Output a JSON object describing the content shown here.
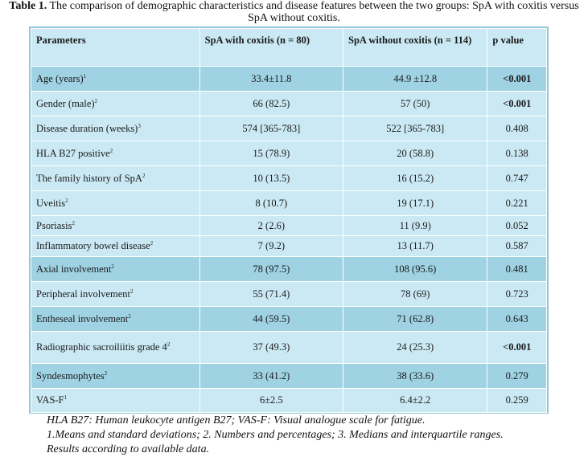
{
  "caption": {
    "label": "Table 1.",
    "text": "The comparison of demographic characteristics and disease features between the two groups: SpA with coxitis versus SpA without coxitis."
  },
  "headers": {
    "parameters": "Parameters",
    "with_coxitis": "SpA with coxitis (n = 80)",
    "without_coxitis": "SpA  without  coxitis  (n  =  114)",
    "p_value": "p value"
  },
  "rows": [
    {
      "param": "Age (years)",
      "sup": "1",
      "with": "33.4±11.8",
      "without": "44.9 ±12.8",
      "p": "<0.001",
      "p_bold": true
    },
    {
      "param": "Gender (male)",
      "sup": "2",
      "with": "66 (82.5)",
      "without": "57 (50)",
      "p": "<0.001",
      "p_bold": true
    },
    {
      "param": "Disease duration (weeks)",
      "sup": "3",
      "with": "574 [365-783]",
      "without": "522 [365-783]",
      "p": "0.408",
      "p_bold": false
    },
    {
      "param": "HLA B27 positive",
      "sup": "2",
      "with": "15 (78.9)",
      "without": "20 (58.8)",
      "p": "0.138",
      "p_bold": false
    },
    {
      "param": "The family history of SpA",
      "sup": "2",
      "with": "10 (13.5)",
      "without": "16 (15.2)",
      "p": "0.747",
      "p_bold": false
    },
    {
      "param": "Uveitis",
      "sup": "2",
      "with": "8 (10.7)",
      "without": "19 (17.1)",
      "p": "0.221",
      "p_bold": false
    },
    {
      "param": "Psoriasis",
      "sup": "2",
      "with": "2 (2.6)",
      "without": "11 (9.9)",
      "p": "0.052",
      "p_bold": false
    },
    {
      "param": "Inflammatory bowel disease",
      "sup": "2",
      "with": "7 (9.2)",
      "without": "13 (11.7)",
      "p": "0.587",
      "p_bold": false
    },
    {
      "param": "Axial involvement",
      "sup": "2",
      "with": "78 (97.5)",
      "without": "108 (95.6)",
      "p": "0.481",
      "p_bold": false
    },
    {
      "param": "Peripheral involvement",
      "sup": "2",
      "with": "55 (71.4)",
      "without": "78 (69)",
      "p": "0.723",
      "p_bold": false
    },
    {
      "param": "Entheseal involvement",
      "sup": "2",
      "with": "44 (59.5)",
      "without": "71 (62.8)",
      "p": "0.643",
      "p_bold": false
    },
    {
      "param": "Radiographic sacroiliitis grade 4",
      "sup": "2",
      "with": "37 (49.3)",
      "without": "24 (25.3)",
      "p": "<0.001",
      "p_bold": true
    },
    {
      "param": "Syndesmophytes",
      "sup": "2",
      "with": "33 (41.2)",
      "without": "38 (33.6)",
      "p": "0.279",
      "p_bold": false
    },
    {
      "param": "VAS-F",
      "sup": "1",
      "with": "6±2.5",
      "without": "6.4±2.2",
      "p": "0.259",
      "p_bold": false
    }
  ],
  "notes": [
    "HLA B27: Human leukocyte antigen B27; VAS-F: Visual analogue scale for fatigue.",
    "1.Means and standard deviations; 2. Numbers and percentages; 3. Medians and interquartile ranges.",
    "Results according to available data."
  ],
  "colors": {
    "light_row": "#cbe9f4",
    "dark_row": "#9fd2e3",
    "border": "#8fc7d8"
  }
}
